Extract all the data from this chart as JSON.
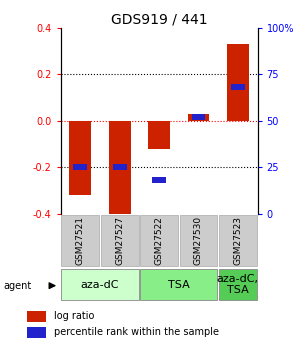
{
  "title": "GDS919 / 441",
  "samples": [
    "GSM27521",
    "GSM27527",
    "GSM27522",
    "GSM27530",
    "GSM27523"
  ],
  "log_ratios": [
    -0.32,
    -0.435,
    -0.12,
    0.03,
    0.33
  ],
  "percentile_ranks": [
    25,
    25,
    18,
    52,
    68
  ],
  "ylim": [
    -0.4,
    0.4
  ],
  "yticks_left": [
    -0.4,
    -0.2,
    0.0,
    0.2,
    0.4
  ],
  "yticks_right": [
    0,
    25,
    50,
    75,
    100
  ],
  "bar_width": 0.55,
  "blue_bar_width": 0.35,
  "blue_bar_height": 0.025,
  "red_color": "#cc2200",
  "blue_color": "#2222cc",
  "grid_color": "#000000",
  "agent_groups": [
    {
      "label": "aza-dC",
      "start": 0,
      "end": 2,
      "color": "#ccffcc"
    },
    {
      "label": "TSA",
      "start": 2,
      "end": 4,
      "color": "#88ee88"
    },
    {
      "label": "aza-dC,\nTSA",
      "start": 4,
      "end": 5,
      "color": "#55cc55"
    }
  ],
  "legend_red": "log ratio",
  "legend_blue": "percentile rank within the sample",
  "sample_box_color": "#cccccc",
  "agent_label": "agent",
  "title_fontsize": 10,
  "tick_fontsize": 7,
  "label_fontsize": 7,
  "sample_fontsize": 6.5,
  "agent_fontsize": 8
}
